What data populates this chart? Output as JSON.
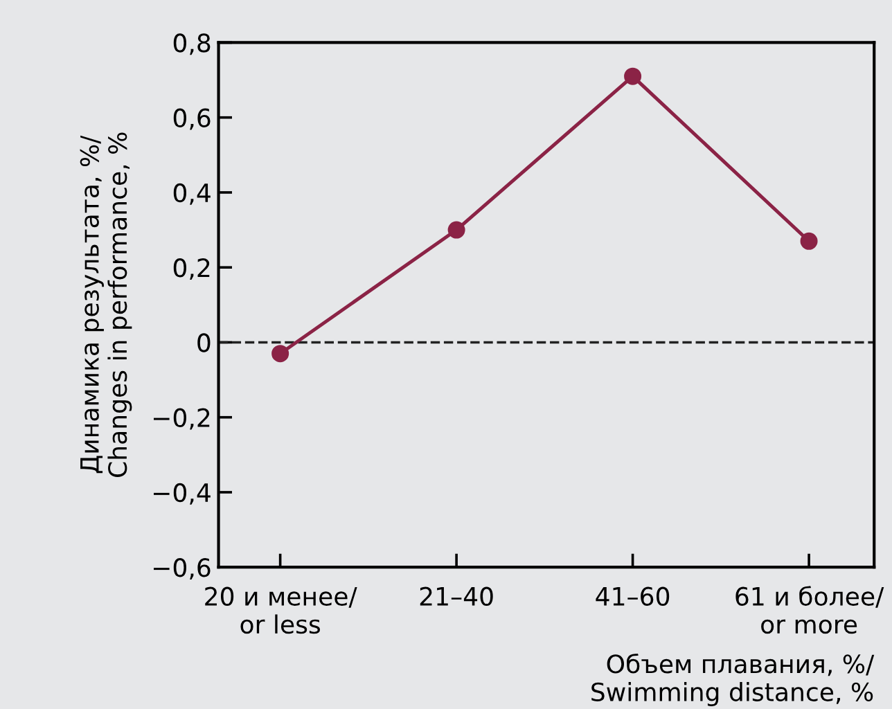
{
  "chart_data": {
    "type": "line",
    "xlabel": "Объем плавания, %/\nSwimming distance, %",
    "ylabel": "Динамика результата, %/\nChanges in performance, %",
    "categories": [
      "20 и менее/\nor less",
      "21–40",
      "41–60",
      "61 и более/\nor more"
    ],
    "series": [
      {
        "color": "#8b2346",
        "values": [
          -0.03,
          0.3,
          0.71,
          0.27
        ]
      }
    ],
    "ylim": [
      -0.6,
      0.8
    ],
    "yticks": [
      {
        "value": -0.6,
        "label": "−0,6"
      },
      {
        "value": -0.4,
        "label": "−0,4"
      },
      {
        "value": -0.2,
        "label": "−0,2"
      },
      0,
      {
        "value": 0.2,
        "label": "0,2"
      },
      {
        "value": 0.4,
        "label": "0,4"
      },
      {
        "value": 0.6,
        "label": "0,6"
      },
      {
        "value": 0.8,
        "label": "0,8"
      }
    ],
    "ref_lines": [
      {
        "axis": "y",
        "value": 0,
        "color": "#222222",
        "line_style": "dashed"
      }
    ],
    "marker": "circle",
    "line_style": "solid",
    "grid": false,
    "legend": false
  }
}
